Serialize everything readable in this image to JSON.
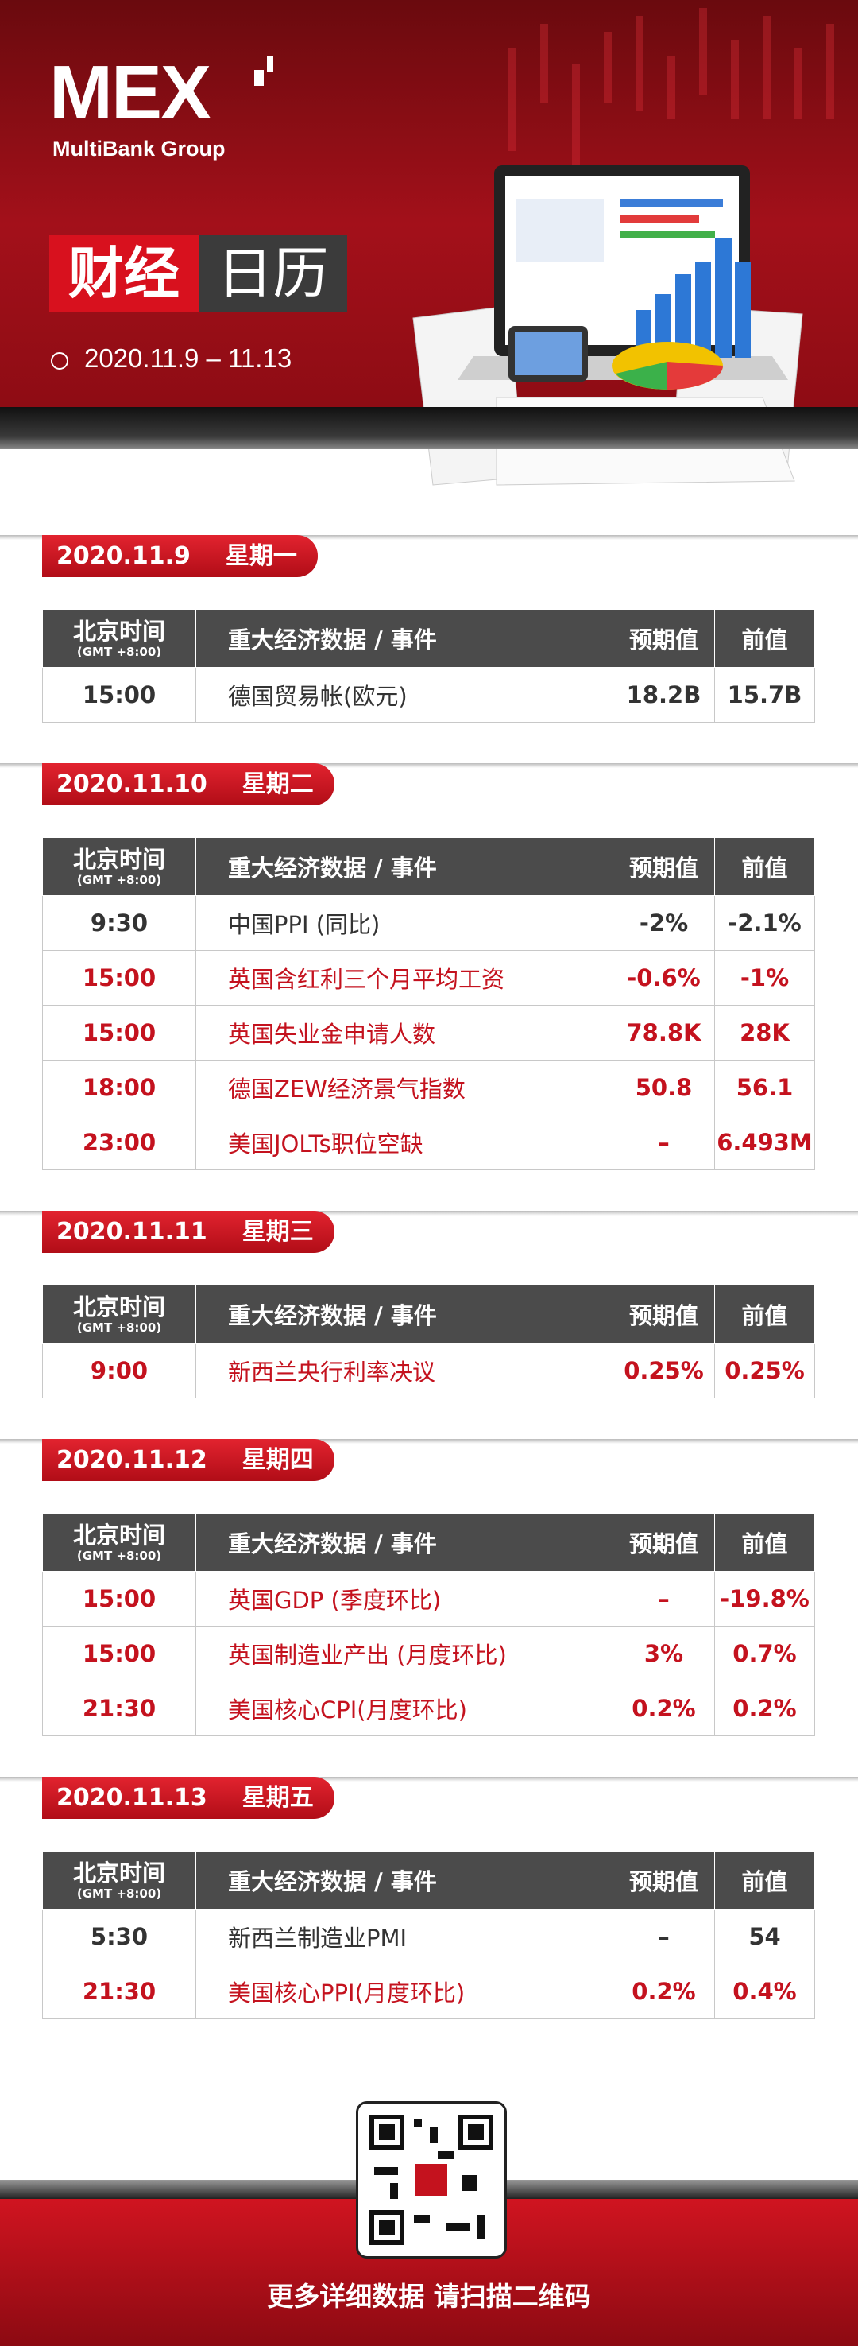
{
  "header": {
    "logo": "MEX",
    "brand": "MultiBank Group",
    "title_part1": "财经",
    "title_part2": "日历",
    "date_range": "2020.11.9 – 11.13"
  },
  "columns": {
    "time": "北京时间",
    "timezone": "(GMT +8:00)",
    "event": "重大经济数据 / 事件",
    "forecast": "预期值",
    "previous": "前值"
  },
  "days": [
    {
      "date": "2020.11.9",
      "weekday": "星期一",
      "rows": [
        {
          "time": "15:00",
          "event": "德国贸易帐(欧元)",
          "forecast": "18.2B",
          "previous": "15.7B",
          "highlight": false
        }
      ]
    },
    {
      "date": "2020.11.10",
      "weekday": "星期二",
      "rows": [
        {
          "time": "9:30",
          "event": "中国PPI (同比)",
          "forecast": "-2%",
          "previous": "-2.1%",
          "highlight": false
        },
        {
          "time": "15:00",
          "event": "英国含红利三个月平均工资",
          "forecast": "-0.6%",
          "previous": "-1%",
          "highlight": true
        },
        {
          "time": "15:00",
          "event": "英国失业金申请人数",
          "forecast": "78.8K",
          "previous": "28K",
          "highlight": true
        },
        {
          "time": "18:00",
          "event": "德国ZEW经济景气指数",
          "forecast": "50.8",
          "previous": "56.1",
          "highlight": true
        },
        {
          "time": "23:00",
          "event": "美国JOLTs职位空缺",
          "forecast": "–",
          "previous": "6.493M",
          "highlight": true
        }
      ]
    },
    {
      "date": "2020.11.11",
      "weekday": "星期三",
      "rows": [
        {
          "time": "9:00",
          "event": "新西兰央行利率决议",
          "forecast": "0.25%",
          "previous": "0.25%",
          "highlight": true
        }
      ]
    },
    {
      "date": "2020.11.12",
      "weekday": "星期四",
      "rows": [
        {
          "time": "15:00",
          "event": "英国GDP (季度环比)",
          "forecast": "–",
          "previous": "-19.8%",
          "highlight": true
        },
        {
          "time": "15:00",
          "event": "英国制造业产出 (月度环比)",
          "forecast": "3%",
          "previous": "0.7%",
          "highlight": true
        },
        {
          "time": "21:30",
          "event": "美国核心CPI(月度环比)",
          "forecast": "0.2%",
          "previous": "0.2%",
          "highlight": true
        }
      ]
    },
    {
      "date": "2020.11.13",
      "weekday": "星期五",
      "rows": [
        {
          "time": "5:30",
          "event": "新西兰制造业PMI",
          "forecast": "–",
          "previous": "54",
          "highlight": false
        },
        {
          "time": "21:30",
          "event": "美国核心PPI(月度环比)",
          "forecast": "0.2%",
          "previous": "0.4%",
          "highlight": true
        }
      ]
    }
  ],
  "footer": {
    "text": "更多详细数据 请扫描二维码"
  }
}
